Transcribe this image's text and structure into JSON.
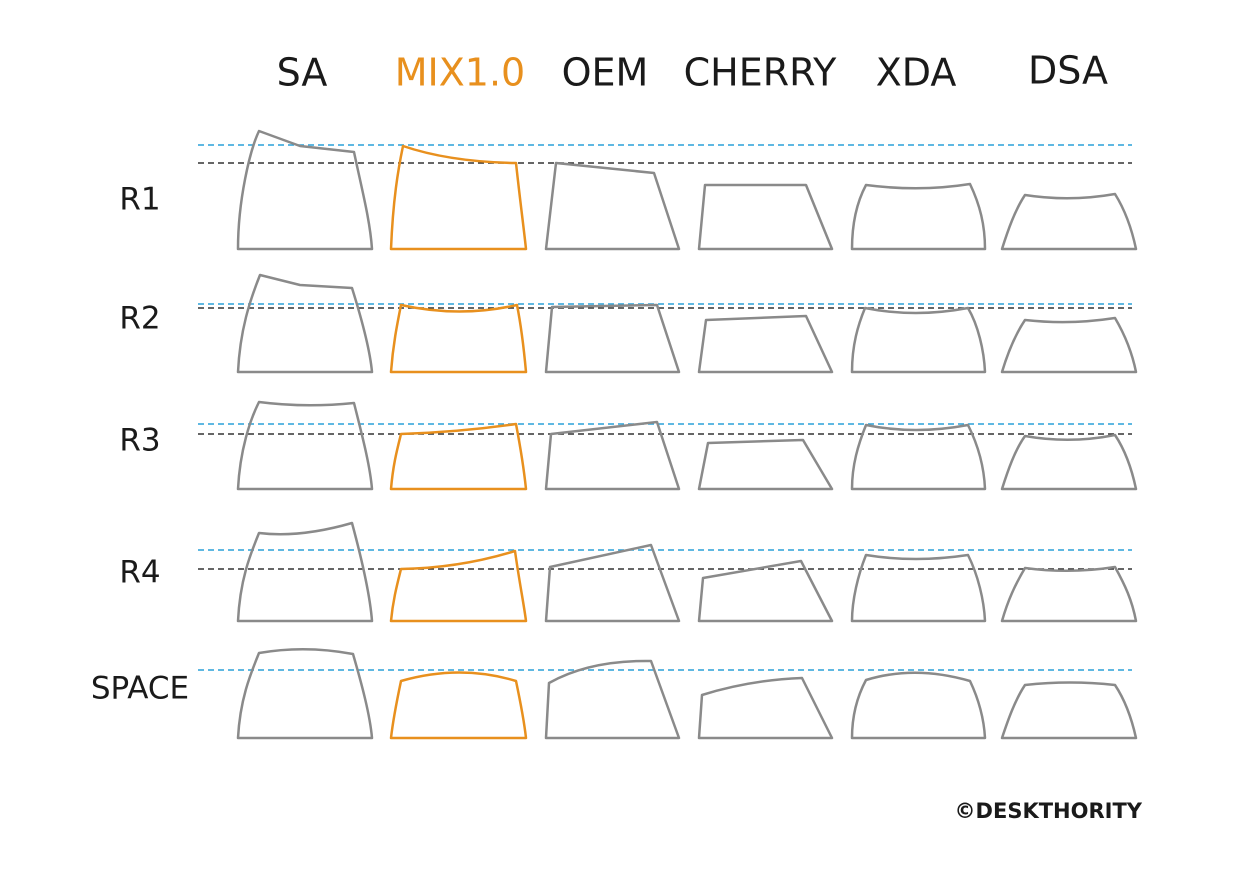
{
  "columns": [
    "SA",
    "MIX1.0",
    "OEM",
    "CHERRY",
    "XDA",
    "DSA"
  ],
  "rows": [
    "R1",
    "R2",
    "R3",
    "R4",
    "SPACE"
  ],
  "credit": "©DESKTHORITY"
}
